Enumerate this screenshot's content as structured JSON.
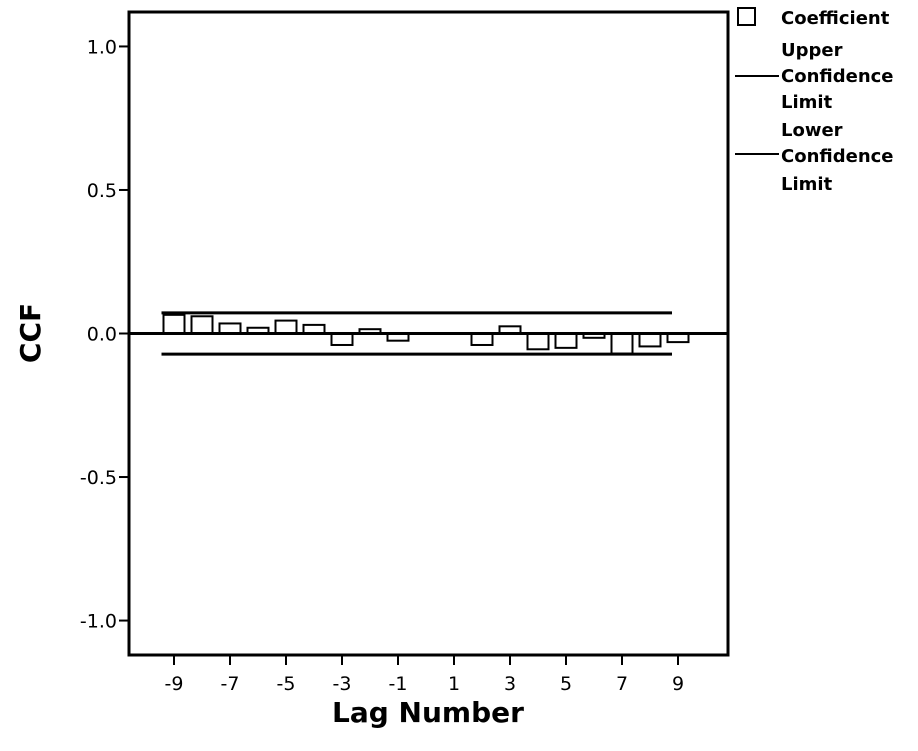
{
  "chart_data": {
    "type": "bar",
    "title": "",
    "xlabel": "Lag Number",
    "ylabel": "CCF",
    "ylim": [
      -1.12,
      1.12
    ],
    "yticks": [
      1.0,
      0.5,
      0.0,
      -0.5,
      -1.0
    ],
    "ytick_labels": [
      "1.0",
      "0.5",
      "0.0",
      "-0.5",
      "-1.0"
    ],
    "xtick_labels": [
      "-9",
      "-7",
      "-5",
      "-3",
      "-1",
      "1",
      "3",
      "5",
      "7",
      "9"
    ],
    "lags": [
      -9,
      -8,
      -7,
      -6,
      -5,
      -4,
      -3,
      -2,
      -1,
      0,
      1,
      2,
      3,
      4,
      5,
      6,
      7,
      8,
      9
    ],
    "coefficients": [
      0.065,
      0.06,
      0.035,
      0.02,
      0.045,
      0.03,
      -0.04,
      0.015,
      -0.025,
      0.0,
      0.0,
      -0.04,
      0.025,
      -0.055,
      -0.05,
      -0.015,
      -0.07,
      -0.045,
      -0.03
    ],
    "upper_confidence_limit": 0.072,
    "lower_confidence_limit": -0.072,
    "grid": false,
    "legend_position": "top-right",
    "bar_fill": "#ffffff",
    "bar_stroke": "#000000"
  },
  "legend": {
    "coefficient": "Coefficient",
    "upper_line1": "Upper",
    "upper_line2": "Confidence",
    "upper_line3": "Limit",
    "lower_line1": "Lower",
    "lower_line2": "Confidence",
    "lower_line3": "Limit"
  }
}
